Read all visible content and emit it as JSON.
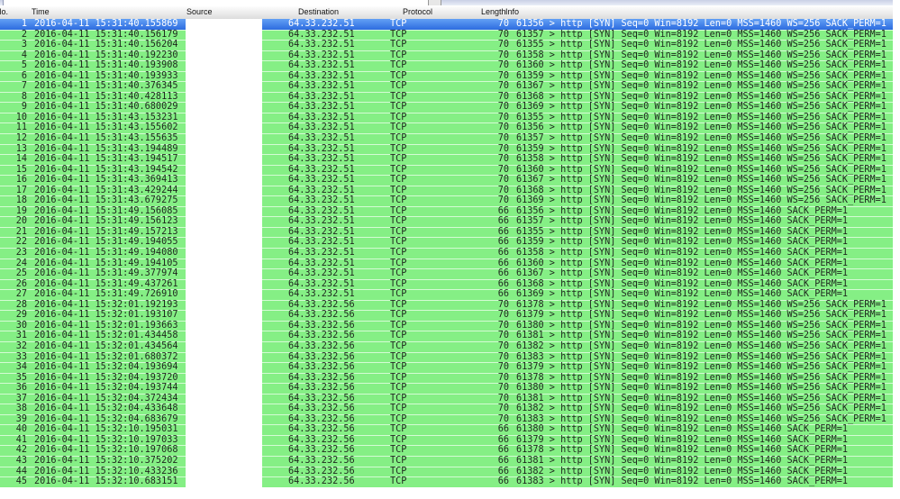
{
  "toolbar": {
    "filter_value": ""
  },
  "table": {
    "columns": [
      "No.",
      "Time",
      "Source",
      "Destination",
      "Protocol",
      "Length",
      "Info"
    ],
    "selected_no": "1"
  },
  "colors": {
    "row_green": "#85ef85",
    "row_separator": "#d4fbd4",
    "selected_blue": "#2d6cdf",
    "selected_text": "#ffffff",
    "row_text": "#1d271d",
    "header_bg": "#e8e8e8"
  },
  "rows": [
    {
      "no": "1",
      "time": "2016-04-11 15:31:40.155869",
      "source": "",
      "destination": "64.33.232.51",
      "protocol": "TCP",
      "length": "70",
      "info": "61356 > http [SYN] Seq=0 Win=8192 Len=0 MSS=1460 WS=256 SACK_PERM=1"
    },
    {
      "no": "2",
      "time": "2016-04-11 15:31:40.156179",
      "source": "",
      "destination": "64.33.232.51",
      "protocol": "TCP",
      "length": "70",
      "info": "61357 > http [SYN] Seq=0 Win=8192 Len=0 MSS=1460 WS=256 SACK_PERM=1"
    },
    {
      "no": "3",
      "time": "2016-04-11 15:31:40.156204",
      "source": "",
      "destination": "64.33.232.51",
      "protocol": "TCP",
      "length": "70",
      "info": "61355 > http [SYN] Seq=0 Win=8192 Len=0 MSS=1460 WS=256 SACK_PERM=1"
    },
    {
      "no": "4",
      "time": "2016-04-11 15:31:40.192230",
      "source": "",
      "destination": "64.33.232.51",
      "protocol": "TCP",
      "length": "70",
      "info": "61358 > http [SYN] Seq=0 Win=8192 Len=0 MSS=1460 WS=256 SACK_PERM=1"
    },
    {
      "no": "5",
      "time": "2016-04-11 15:31:40.193908",
      "source": "",
      "destination": "64.33.232.51",
      "protocol": "TCP",
      "length": "70",
      "info": "61360 > http [SYN] Seq=0 Win=8192 Len=0 MSS=1460 WS=256 SACK_PERM=1"
    },
    {
      "no": "6",
      "time": "2016-04-11 15:31:40.193933",
      "source": "",
      "destination": "64.33.232.51",
      "protocol": "TCP",
      "length": "70",
      "info": "61359 > http [SYN] Seq=0 Win=8192 Len=0 MSS=1460 WS=256 SACK_PERM=1"
    },
    {
      "no": "7",
      "time": "2016-04-11 15:31:40.376345",
      "source": "",
      "destination": "64.33.232.51",
      "protocol": "TCP",
      "length": "70",
      "info": "61367 > http [SYN] Seq=0 Win=8192 Len=0 MSS=1460 WS=256 SACK_PERM=1"
    },
    {
      "no": "8",
      "time": "2016-04-11 15:31:40.428113",
      "source": "",
      "destination": "64.33.232.51",
      "protocol": "TCP",
      "length": "70",
      "info": "61368 > http [SYN] Seq=0 Win=8192 Len=0 MSS=1460 WS=256 SACK_PERM=1"
    },
    {
      "no": "9",
      "time": "2016-04-11 15:31:40.680029",
      "source": "",
      "destination": "64.33.232.51",
      "protocol": "TCP",
      "length": "70",
      "info": "61369 > http [SYN] Seq=0 Win=8192 Len=0 MSS=1460 WS=256 SACK_PERM=1"
    },
    {
      "no": "10",
      "time": "2016-04-11 15:31:43.153231",
      "source": "",
      "destination": "64.33.232.51",
      "protocol": "TCP",
      "length": "70",
      "info": "61355 > http [SYN] Seq=0 Win=8192 Len=0 MSS=1460 WS=256 SACK_PERM=1"
    },
    {
      "no": "11",
      "time": "2016-04-11 15:31:43.155602",
      "source": "",
      "destination": "64.33.232.51",
      "protocol": "TCP",
      "length": "70",
      "info": "61356 > http [SYN] Seq=0 Win=8192 Len=0 MSS=1460 WS=256 SACK_PERM=1"
    },
    {
      "no": "12",
      "time": "2016-04-11 15:31:43.155635",
      "source": "",
      "destination": "64.33.232.51",
      "protocol": "TCP",
      "length": "70",
      "info": "61357 > http [SYN] Seq=0 Win=8192 Len=0 MSS=1460 WS=256 SACK_PERM=1"
    },
    {
      "no": "13",
      "time": "2016-04-11 15:31:43.194489",
      "source": "",
      "destination": "64.33.232.51",
      "protocol": "TCP",
      "length": "70",
      "info": "61359 > http [SYN] Seq=0 Win=8192 Len=0 MSS=1460 WS=256 SACK_PERM=1"
    },
    {
      "no": "14",
      "time": "2016-04-11 15:31:43.194517",
      "source": "",
      "destination": "64.33.232.51",
      "protocol": "TCP",
      "length": "70",
      "info": "61358 > http [SYN] Seq=0 Win=8192 Len=0 MSS=1460 WS=256 SACK_PERM=1"
    },
    {
      "no": "15",
      "time": "2016-04-11 15:31:43.194542",
      "source": "",
      "destination": "64.33.232.51",
      "protocol": "TCP",
      "length": "70",
      "info": "61360 > http [SYN] Seq=0 Win=8192 Len=0 MSS=1460 WS=256 SACK_PERM=1"
    },
    {
      "no": "16",
      "time": "2016-04-11 15:31:43.369413",
      "source": "",
      "destination": "64.33.232.51",
      "protocol": "TCP",
      "length": "70",
      "info": "61367 > http [SYN] Seq=0 Win=8192 Len=0 MSS=1460 WS=256 SACK_PERM=1"
    },
    {
      "no": "17",
      "time": "2016-04-11 15:31:43.429244",
      "source": "",
      "destination": "64.33.232.51",
      "protocol": "TCP",
      "length": "70",
      "info": "61368 > http [SYN] Seq=0 Win=8192 Len=0 MSS=1460 WS=256 SACK_PERM=1"
    },
    {
      "no": "18",
      "time": "2016-04-11 15:31:43.679275",
      "source": "",
      "destination": "64.33.232.51",
      "protocol": "TCP",
      "length": "70",
      "info": "61369 > http [SYN] Seq=0 Win=8192 Len=0 MSS=1460 WS=256 SACK_PERM=1"
    },
    {
      "no": "19",
      "time": "2016-04-11 15:31:49.156085",
      "source": "",
      "destination": "64.33.232.51",
      "protocol": "TCP",
      "length": "66",
      "info": "61356 > http [SYN] Seq=0 Win=8192 Len=0 MSS=1460 SACK_PERM=1"
    },
    {
      "no": "20",
      "time": "2016-04-11 15:31:49.156123",
      "source": "",
      "destination": "64.33.232.51",
      "protocol": "TCP",
      "length": "66",
      "info": "61357 > http [SYN] Seq=0 Win=8192 Len=0 MSS=1460 SACK_PERM=1"
    },
    {
      "no": "21",
      "time": "2016-04-11 15:31:49.157213",
      "source": "",
      "destination": "64.33.232.51",
      "protocol": "TCP",
      "length": "66",
      "info": "61355 > http [SYN] Seq=0 Win=8192 Len=0 MSS=1460 SACK_PERM=1"
    },
    {
      "no": "22",
      "time": "2016-04-11 15:31:49.194055",
      "source": "",
      "destination": "64.33.232.51",
      "protocol": "TCP",
      "length": "66",
      "info": "61359 > http [SYN] Seq=0 Win=8192 Len=0 MSS=1460 SACK_PERM=1"
    },
    {
      "no": "23",
      "time": "2016-04-11 15:31:49.194080",
      "source": "",
      "destination": "64.33.232.51",
      "protocol": "TCP",
      "length": "66",
      "info": "61358 > http [SYN] Seq=0 Win=8192 Len=0 MSS=1460 SACK_PERM=1"
    },
    {
      "no": "24",
      "time": "2016-04-11 15:31:49.194105",
      "source": "",
      "destination": "64.33.232.51",
      "protocol": "TCP",
      "length": "66",
      "info": "61360 > http [SYN] Seq=0 Win=8192 Len=0 MSS=1460 SACK_PERM=1"
    },
    {
      "no": "25",
      "time": "2016-04-11 15:31:49.377974",
      "source": "",
      "destination": "64.33.232.51",
      "protocol": "TCP",
      "length": "66",
      "info": "61367 > http [SYN] Seq=0 Win=8192 Len=0 MSS=1460 SACK_PERM=1"
    },
    {
      "no": "26",
      "time": "2016-04-11 15:31:49.437261",
      "source": "",
      "destination": "64.33.232.51",
      "protocol": "TCP",
      "length": "66",
      "info": "61368 > http [SYN] Seq=0 Win=8192 Len=0 MSS=1460 SACK_PERM=1"
    },
    {
      "no": "27",
      "time": "2016-04-11 15:31:49.726910",
      "source": "",
      "destination": "64.33.232.51",
      "protocol": "TCP",
      "length": "66",
      "info": "61369 > http [SYN] Seq=0 Win=8192 Len=0 MSS=1460 SACK_PERM=1"
    },
    {
      "no": "28",
      "time": "2016-04-11 15:32:01.192193",
      "source": "",
      "destination": "64.33.232.56",
      "protocol": "TCP",
      "length": "70",
      "info": "61378 > http [SYN] Seq=0 Win=8192 Len=0 MSS=1460 WS=256 SACK_PERM=1"
    },
    {
      "no": "29",
      "time": "2016-04-11 15:32:01.193107",
      "source": "",
      "destination": "64.33.232.56",
      "protocol": "TCP",
      "length": "70",
      "info": "61379 > http [SYN] Seq=0 Win=8192 Len=0 MSS=1460 WS=256 SACK_PERM=1"
    },
    {
      "no": "30",
      "time": "2016-04-11 15:32:01.193663",
      "source": "",
      "destination": "64.33.232.56",
      "protocol": "TCP",
      "length": "70",
      "info": "61380 > http [SYN] Seq=0 Win=8192 Len=0 MSS=1460 WS=256 SACK_PERM=1"
    },
    {
      "no": "31",
      "time": "2016-04-11 15:32:01.434458",
      "source": "",
      "destination": "64.33.232.56",
      "protocol": "TCP",
      "length": "70",
      "info": "61381 > http [SYN] Seq=0 Win=8192 Len=0 MSS=1460 WS=256 SACK_PERM=1"
    },
    {
      "no": "32",
      "time": "2016-04-11 15:32:01.434564",
      "source": "",
      "destination": "64.33.232.56",
      "protocol": "TCP",
      "length": "70",
      "info": "61382 > http [SYN] Seq=0 Win=8192 Len=0 MSS=1460 WS=256 SACK_PERM=1"
    },
    {
      "no": "33",
      "time": "2016-04-11 15:32:01.680372",
      "source": "",
      "destination": "64.33.232.56",
      "protocol": "TCP",
      "length": "70",
      "info": "61383 > http [SYN] Seq=0 Win=8192 Len=0 MSS=1460 WS=256 SACK_PERM=1"
    },
    {
      "no": "34",
      "time": "2016-04-11 15:32:04.193694",
      "source": "",
      "destination": "64.33.232.56",
      "protocol": "TCP",
      "length": "70",
      "info": "61379 > http [SYN] Seq=0 Win=8192 Len=0 MSS=1460 WS=256 SACK_PERM=1"
    },
    {
      "no": "35",
      "time": "2016-04-11 15:32:04.193720",
      "source": "",
      "destination": "64.33.232.56",
      "protocol": "TCP",
      "length": "70",
      "info": "61378 > http [SYN] Seq=0 Win=8192 Len=0 MSS=1460 WS=256 SACK_PERM=1"
    },
    {
      "no": "36",
      "time": "2016-04-11 15:32:04.193744",
      "source": "",
      "destination": "64.33.232.56",
      "protocol": "TCP",
      "length": "70",
      "info": "61380 > http [SYN] Seq=0 Win=8192 Len=0 MSS=1460 WS=256 SACK_PERM=1"
    },
    {
      "no": "37",
      "time": "2016-04-11 15:32:04.372434",
      "source": "",
      "destination": "64.33.232.56",
      "protocol": "TCP",
      "length": "70",
      "info": "61381 > http [SYN] Seq=0 Win=8192 Len=0 MSS=1460 WS=256 SACK_PERM=1"
    },
    {
      "no": "38",
      "time": "2016-04-11 15:32:04.433648",
      "source": "",
      "destination": "64.33.232.56",
      "protocol": "TCP",
      "length": "70",
      "info": "61382 > http [SYN] Seq=0 Win=8192 Len=0 MSS=1460 WS=256 SACK_PERM=1"
    },
    {
      "no": "39",
      "time": "2016-04-11 15:32:04.683679",
      "source": "",
      "destination": "64.33.232.56",
      "protocol": "TCP",
      "length": "70",
      "info": "61383 > http [SYN] Seq=0 Win=8192 Len=0 MSS=1460 WS=256 SACK_PERM=1"
    },
    {
      "no": "40",
      "time": "2016-04-11 15:32:10.195031",
      "source": "",
      "destination": "64.33.232.56",
      "protocol": "TCP",
      "length": "66",
      "info": "61380 > http [SYN] Seq=0 Win=8192 Len=0 MSS=1460 SACK_PERM=1"
    },
    {
      "no": "41",
      "time": "2016-04-11 15:32:10.197033",
      "source": "",
      "destination": "64.33.232.56",
      "protocol": "TCP",
      "length": "66",
      "info": "61379 > http [SYN] Seq=0 Win=8192 Len=0 MSS=1460 SACK_PERM=1"
    },
    {
      "no": "42",
      "time": "2016-04-11 15:32:10.197068",
      "source": "",
      "destination": "64.33.232.56",
      "protocol": "TCP",
      "length": "66",
      "info": "61378 > http [SYN] Seq=0 Win=8192 Len=0 MSS=1460 SACK_PERM=1"
    },
    {
      "no": "43",
      "time": "2016-04-11 15:32:10.375202",
      "source": "",
      "destination": "64.33.232.56",
      "protocol": "TCP",
      "length": "66",
      "info": "61381 > http [SYN] Seq=0 Win=8192 Len=0 MSS=1460 SACK_PERM=1"
    },
    {
      "no": "44",
      "time": "2016-04-11 15:32:10.433236",
      "source": "",
      "destination": "64.33.232.56",
      "protocol": "TCP",
      "length": "66",
      "info": "61382 > http [SYN] Seq=0 Win=8192 Len=0 MSS=1460 SACK_PERM=1"
    },
    {
      "no": "45",
      "time": "2016-04-11 15:32:10.683151",
      "source": "",
      "destination": "64.33.232.56",
      "protocol": "TCP",
      "length": "66",
      "info": "61383 > http [SYN] Seq=0 Win=8192 Len=0 MSS=1460 SACK_PERM=1"
    }
  ]
}
